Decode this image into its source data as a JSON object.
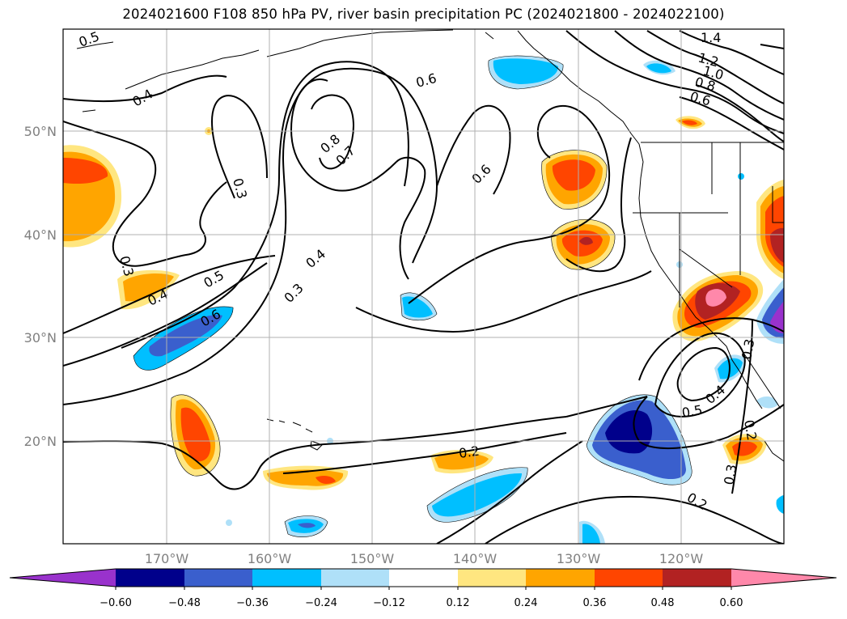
{
  "title": "2024021600 F108 850 hPa PV, river basin precipitation PC (2024021800 - 2024022100)",
  "map": {
    "lat_labels": [
      "50°N",
      "40°N",
      "30°N",
      "20°N"
    ],
    "lon_labels": [
      "170°W",
      "160°W",
      "150°W",
      "140°W",
      "130°W",
      "120°W"
    ],
    "grid": true,
    "contour_color": "#000000",
    "contour_labels": [
      "0.5",
      "0.4",
      "0.6",
      "1.4",
      "1.2",
      "1.0",
      "0.8",
      "0.6",
      "0.3",
      "0.8",
      "0.7",
      "0.6",
      "0.3",
      "0.5",
      "0.4",
      "0.4",
      "0.6",
      "0.3",
      "0.2",
      "0.5",
      "0.4",
      "0.3",
      "0.2",
      "0.3",
      "0.2"
    ]
  },
  "colorbar": {
    "ticks": [
      "−0.60",
      "−0.48",
      "−0.36",
      "−0.24",
      "−0.12",
      "0.12",
      "0.24",
      "0.36",
      "0.48",
      "0.60"
    ],
    "colors": [
      "#9932cc",
      "#00008b",
      "#3a5fcd",
      "#00bfff",
      "#afe0f8",
      "#ffffff",
      "#ffe680",
      "#ffa500",
      "#ff4500",
      "#b22222",
      "#ff88aa"
    ]
  }
}
